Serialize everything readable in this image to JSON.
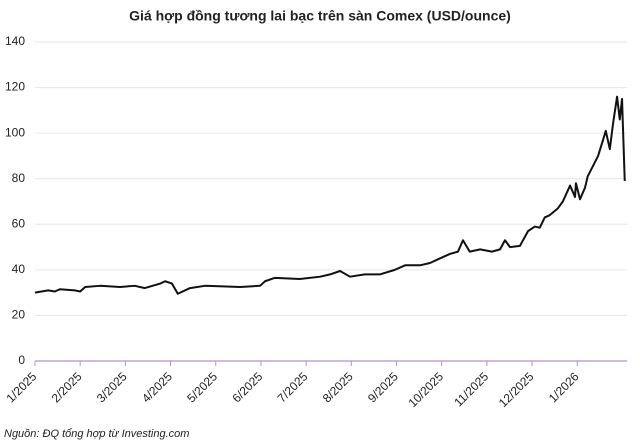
{
  "chart_data": {
    "type": "line",
    "title": "Giá hợp đồng tương lai bạc trên sàn Comex (USD/ounce)",
    "source": "Nguồn: ĐQ tổng hợp từ Investing.com",
    "x": [
      0,
      0.29,
      0.44,
      0.55,
      0.88,
      1.0,
      1.11,
      1.44,
      1.88,
      2.21,
      2.43,
      2.77,
      2.88,
      3.03,
      3.16,
      3.43,
      3.76,
      4.54,
      4.98,
      5.09,
      5.31,
      5.86,
      6.31,
      6.53,
      6.75,
      6.97,
      7.3,
      7.63,
      7.96,
      8.19,
      8.52,
      8.74,
      8.96,
      9.18,
      9.36,
      9.47,
      9.62,
      9.85,
      10.11,
      10.29,
      10.4,
      10.51,
      10.73,
      10.91,
      11.06,
      11.17,
      11.28,
      11.39,
      11.57,
      11.68,
      11.84,
      11.95,
      11.97,
      12.06,
      12.17,
      12.23,
      12.46,
      12.57,
      12.63,
      12.72,
      12.79,
      12.88,
      12.94,
      12.99,
      13.05
    ],
    "series": [
      {
        "name": "Silver",
        "color": "#111111",
        "values": [
          30,
          31,
          30.5,
          31.5,
          31,
          30.5,
          32.5,
          33,
          32.5,
          33,
          32,
          34,
          35,
          34,
          29.5,
          32,
          33,
          32.5,
          33,
          35,
          36.5,
          36,
          37,
          38,
          39.5,
          37,
          38,
          38,
          40,
          42,
          42,
          43,
          45,
          47,
          48,
          53,
          48,
          49,
          48,
          49,
          53,
          50,
          50.5,
          57,
          59,
          58.5,
          63,
          64,
          67,
          70,
          77,
          72,
          78,
          71,
          76,
          81,
          90,
          97,
          101,
          93,
          104,
          116,
          106,
          115,
          79
        ]
      }
    ],
    "xlim": [
      0,
      13.1
    ],
    "xticks": [
      {
        "value": 0,
        "label": "1/2025"
      },
      {
        "value": 1,
        "label": "2/2025"
      },
      {
        "value": 2,
        "label": "3/2025"
      },
      {
        "value": 3,
        "label": "4/2025"
      },
      {
        "value": 4,
        "label": "5/2025"
      },
      {
        "value": 5,
        "label": "6/2025"
      },
      {
        "value": 6,
        "label": "7/2025"
      },
      {
        "value": 7,
        "label": "8/2025"
      },
      {
        "value": 8,
        "label": "9/2025"
      },
      {
        "value": 9,
        "label": "10/2025"
      },
      {
        "value": 10,
        "label": "11/2025"
      },
      {
        "value": 11,
        "label": "12/2025"
      },
      {
        "value": 12,
        "label": "1/2026"
      }
    ],
    "ylim": [
      0,
      140
    ],
    "yticks": [
      0,
      20,
      40,
      60,
      80,
      100,
      120,
      140
    ],
    "grid": true,
    "axis_color": "#b58fd6"
  }
}
